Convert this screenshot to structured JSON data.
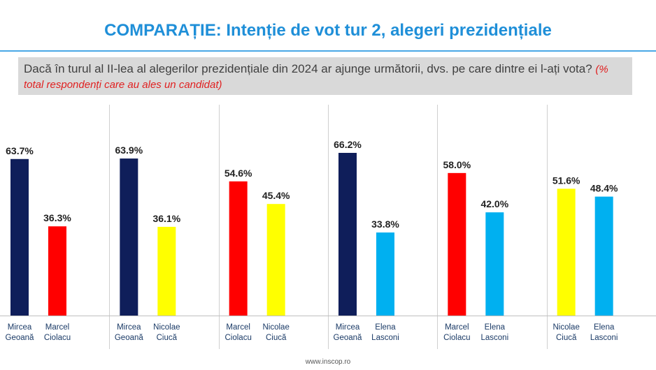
{
  "header": {
    "title": "COMPARAȚIE: Intenție de vot tur 2, alegeri prezidențiale",
    "question": "Dacă în turul al II-lea al alegerilor prezidențiale din 2024 ar ajunge următorii, dvs. pe care dintre ei l-ați vota?",
    "question_note": "(% total respondenți care au ales un candidat)"
  },
  "footer": {
    "source": "www.inscop.ro"
  },
  "colors": {
    "Mircea Geoană": "#0f1e5a",
    "Marcel Ciolacu": "#ff0000",
    "Nicolae Ciucă": "#ffff00",
    "Elena Lasconi": "#00b0f0"
  },
  "chart_data": {
    "type": "bar",
    "title": "COMPARAȚIE: Intenție de vot tur 2, alegeri prezidențiale",
    "ylabel": "% total respondenți care au ales un candidat",
    "ylim": [
      0,
      100
    ],
    "grid": false,
    "matchups": [
      {
        "bars": [
          {
            "candidate": "Mircea Geoană",
            "line1": "Mircea",
            "line2": "Geoană",
            "value": 63.7,
            "label": "63.7%"
          },
          {
            "candidate": "Marcel Ciolacu",
            "line1": "Marcel",
            "line2": "Ciolacu",
            "value": 36.3,
            "label": "36.3%"
          }
        ]
      },
      {
        "bars": [
          {
            "candidate": "Mircea Geoană",
            "line1": "Mircea",
            "line2": "Geoană",
            "value": 63.9,
            "label": "63.9%"
          },
          {
            "candidate": "Nicolae Ciucă",
            "line1": "Nicolae",
            "line2": "Ciucă",
            "value": 36.1,
            "label": "36.1%"
          }
        ]
      },
      {
        "bars": [
          {
            "candidate": "Marcel Ciolacu",
            "line1": "Marcel",
            "line2": "Ciolacu",
            "value": 54.6,
            "label": "54.6%"
          },
          {
            "candidate": "Nicolae Ciucă",
            "line1": "Nicolae",
            "line2": "Ciucă",
            "value": 45.4,
            "label": "45.4%"
          }
        ]
      },
      {
        "bars": [
          {
            "candidate": "Mircea Geoană",
            "line1": "Mircea",
            "line2": "Geoană",
            "value": 66.2,
            "label": "66.2%"
          },
          {
            "candidate": "Elena Lasconi",
            "line1": "Elena",
            "line2": "Lasconi",
            "value": 33.8,
            "label": "33.8%"
          }
        ]
      },
      {
        "bars": [
          {
            "candidate": "Marcel Ciolacu",
            "line1": "Marcel",
            "line2": "Ciolacu",
            "value": 58.0,
            "label": "58.0%"
          },
          {
            "candidate": "Elena Lasconi",
            "line1": "Elena",
            "line2": "Lasconi",
            "value": 42.0,
            "label": "42.0%"
          }
        ]
      },
      {
        "bars": [
          {
            "candidate": "Nicolae Ciucă",
            "line1": "Nicolae",
            "line2": "Ciucă",
            "value": 51.6,
            "label": "51.6%"
          },
          {
            "candidate": "Elena Lasconi",
            "line1": "Elena",
            "line2": "Lasconi",
            "value": 48.4,
            "label": "48.4%"
          }
        ]
      }
    ]
  }
}
